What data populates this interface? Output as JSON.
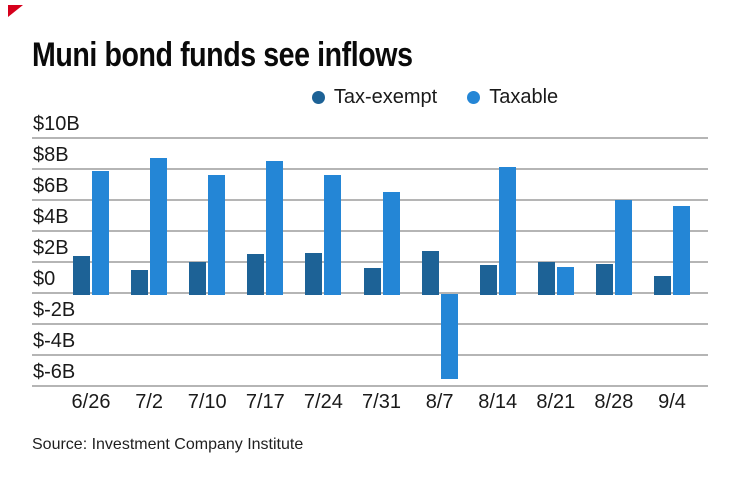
{
  "title": "Muni bond funds see inflows",
  "source_line": "Source: Investment Company Institute",
  "brand": {
    "mark": "red-corner-triangle",
    "color": "#d6001c"
  },
  "colors": {
    "tax_exempt": "#1d6296",
    "taxable": "#2486d6",
    "gridline": "#b5b5b5"
  },
  "chart_data": {
    "type": "bar",
    "title": "Muni bond funds see inflows",
    "subtitle": "",
    "xlabel": "",
    "ylabel": "",
    "unit": "$B",
    "grid": true,
    "legend_position": "top-center",
    "ylim": [
      -6,
      10
    ],
    "ytick_step": 2,
    "ytick_labels": [
      "$10B",
      "$8B",
      "$6B",
      "$4B",
      "$2B",
      "$0",
      "$-2B",
      "$-4B",
      "$-6B"
    ],
    "categories": [
      "6/26",
      "7/2",
      "7/10",
      "7/17",
      "7/24",
      "7/31",
      "8/7",
      "8/14",
      "8/21",
      "8/28",
      "9/4"
    ],
    "series": [
      {
        "name": "Tax-exempt",
        "color": "#1d6296",
        "values": [
          2.4,
          1.5,
          2.0,
          2.5,
          2.6,
          1.6,
          2.7,
          1.8,
          2.0,
          1.9,
          1.1
        ]
      },
      {
        "name": "Taxable",
        "color": "#2486d6",
        "values": [
          7.9,
          8.7,
          7.6,
          8.5,
          7.6,
          6.5,
          -5.5,
          8.1,
          1.7,
          6.0,
          5.6
        ]
      }
    ],
    "source": "Source: Investment Company Institute"
  }
}
